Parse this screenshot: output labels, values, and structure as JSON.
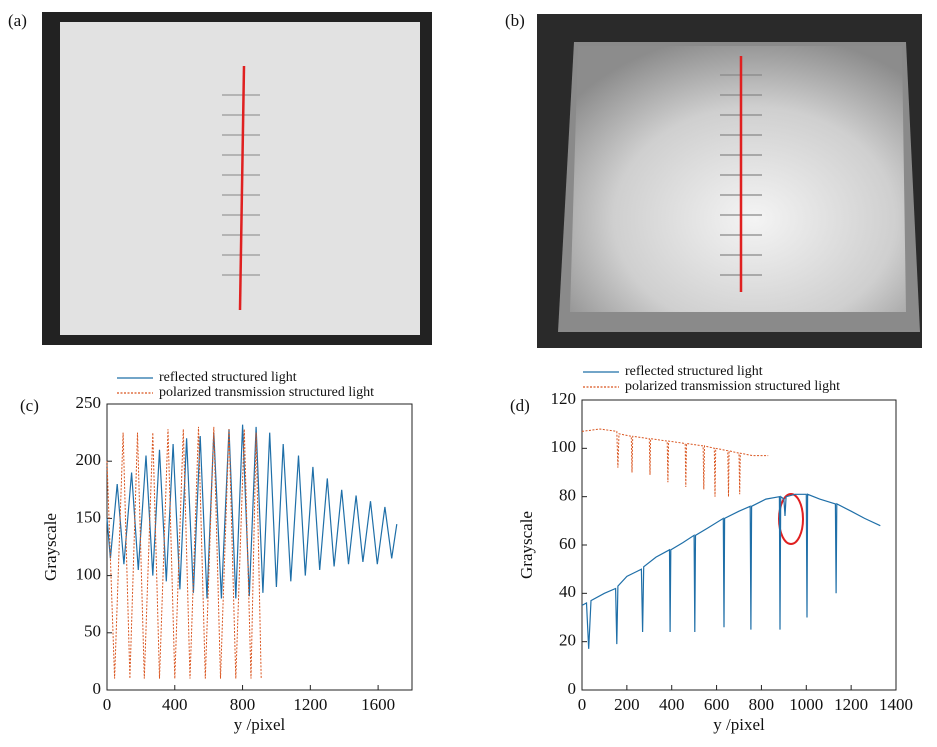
{
  "images": [
    {
      "label": "(a)"
    },
    {
      "label": "(b)"
    }
  ],
  "chart_data": [
    {
      "type": "line",
      "label": "(c)",
      "y_label": "Grayscale",
      "x_label": "y /pixel",
      "xlim": [
        0,
        1800
      ],
      "xticks": [
        0,
        400,
        800,
        1200,
        1600
      ],
      "ylim": [
        0,
        250
      ],
      "yticks": [
        0,
        50,
        100,
        150,
        200,
        250
      ],
      "series": [
        {
          "name": "reflected structured light",
          "color": "#1f6fa8",
          "dashed": false,
          "x": [
            0,
            20,
            60,
            100,
            145,
            185,
            230,
            270,
            310,
            350,
            390,
            430,
            470,
            510,
            550,
            590,
            630,
            675,
            720,
            760,
            800,
            840,
            880,
            920,
            960,
            1000,
            1040,
            1085,
            1130,
            1170,
            1215,
            1255,
            1300,
            1340,
            1385,
            1425,
            1470,
            1510,
            1555,
            1595,
            1640,
            1680,
            1710
          ],
          "values": [
            150,
            115,
            180,
            110,
            190,
            105,
            205,
            100,
            210,
            95,
            215,
            88,
            220,
            85,
            222,
            80,
            225,
            80,
            228,
            80,
            232,
            82,
            230,
            85,
            225,
            90,
            215,
            95,
            205,
            100,
            195,
            105,
            185,
            108,
            175,
            110,
            170,
            112,
            165,
            110,
            160,
            115,
            145
          ]
        },
        {
          "name": "polarized transmission structured light",
          "color": "#d9541e",
          "dashed": true,
          "x": [
            0,
            45,
            95,
            135,
            180,
            220,
            270,
            310,
            360,
            400,
            450,
            490,
            540,
            580,
            630,
            670,
            720,
            760,
            810,
            850,
            880,
            910
          ],
          "values": [
            200,
            10,
            225,
            10,
            225,
            10,
            225,
            10,
            228,
            10,
            228,
            10,
            230,
            10,
            230,
            10,
            228,
            10,
            228,
            10,
            225,
            10
          ]
        }
      ]
    },
    {
      "type": "line",
      "label": "(d)",
      "y_label": "Grayscale",
      "x_label": "y /pixel",
      "xlim": [
        0,
        1400
      ],
      "xticks": [
        0,
        200,
        400,
        600,
        800,
        1000,
        1200,
        1400
      ],
      "ylim": [
        0,
        120
      ],
      "yticks": [
        0,
        20,
        40,
        60,
        80,
        100,
        120
      ],
      "series": [
        {
          "name": "reflected structured light",
          "color": "#1f6fa8",
          "dashed": false,
          "x": [
            0,
            20,
            30,
            40,
            100,
            150,
            155,
            160,
            200,
            265,
            270,
            275,
            330,
            390,
            393,
            396,
            450,
            500,
            503,
            506,
            560,
            630,
            633,
            636,
            700,
            750,
            753,
            756,
            820,
            880,
            883,
            886,
            900,
            905,
            910,
            950,
            1000,
            1003,
            1006,
            1060,
            1130,
            1133,
            1136,
            1200,
            1260,
            1330
          ],
          "values": [
            35,
            36,
            17,
            37,
            40,
            42,
            19,
            43,
            47,
            50,
            24,
            51,
            55,
            58,
            24,
            58,
            61,
            64,
            24,
            64,
            67,
            71,
            26,
            71,
            74,
            76,
            25,
            76,
            79,
            80,
            25,
            80,
            79,
            72,
            80,
            81,
            81,
            30,
            81,
            79,
            77,
            40,
            77,
            74,
            71,
            68
          ]
        },
        {
          "name": "polarized transmission structured light",
          "color": "#d9541e",
          "dashed": true,
          "x": [
            0,
            80,
            155,
            160,
            165,
            220,
            223,
            226,
            300,
            303,
            306,
            380,
            383,
            386,
            460,
            463,
            466,
            540,
            543,
            546,
            590,
            593,
            596,
            650,
            653,
            656,
            700,
            703,
            706,
            760,
            830
          ],
          "values": [
            107,
            108,
            107,
            92,
            106,
            105,
            90,
            105,
            104,
            89,
            104,
            103,
            86,
            103,
            102,
            84,
            102,
            101,
            83,
            101,
            100,
            80,
            100,
            99,
            80,
            99,
            98,
            81,
            98,
            97,
            97
          ]
        }
      ]
    }
  ]
}
